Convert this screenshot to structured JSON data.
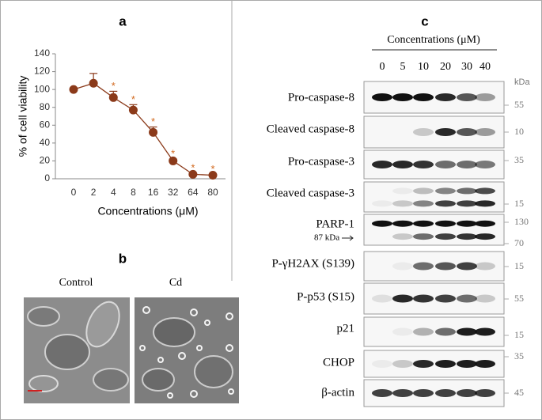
{
  "chart_data": {
    "type": "line",
    "title": "a",
    "xlabel": "Concentrations (μM)",
    "ylabel": "% of  cell viability",
    "categories": [
      "0",
      "2",
      "4",
      "8",
      "16",
      "32",
      "64",
      "80"
    ],
    "values": [
      100,
      107,
      91,
      77,
      52,
      20,
      5,
      4
    ],
    "errors": [
      0,
      11,
      7,
      6,
      6,
      2,
      1,
      1
    ],
    "color": "#8b3a1a",
    "ylim": [
      0,
      140
    ],
    "yticks": [
      0,
      20,
      40,
      60,
      80,
      100,
      120,
      140
    ],
    "annotations": [
      {
        "text": "*",
        "x": "4"
      },
      {
        "text": "*",
        "x": "8"
      },
      {
        "text": "*",
        "x": "16"
      },
      {
        "text": "*",
        "x": "32"
      },
      {
        "text": "*",
        "x": "64"
      },
      {
        "text": "*",
        "x": "80"
      }
    ]
  },
  "panel_b": {
    "title": "b",
    "images": [
      "Control",
      "Cd"
    ]
  },
  "panel_c": {
    "title": "c",
    "header": "Concentrations (μM)",
    "lanes": [
      "0",
      "5",
      "10",
      "20",
      "30",
      "40"
    ],
    "unit": "kDa",
    "rows": [
      {
        "label": "Pro-caspase-8",
        "markers": [
          "55"
        ]
      },
      {
        "label": "Cleaved caspase-8",
        "markers": [
          "10"
        ]
      },
      {
        "label": "Pro-caspase-3",
        "markers": [
          "35"
        ]
      },
      {
        "label": "Cleaved caspase-3",
        "markers": [
          "15"
        ]
      },
      {
        "label": "PARP-1",
        "sublabel": "87 kDa",
        "markers": [
          "130",
          "70"
        ]
      },
      {
        "label": "P-γH2AX (S139)",
        "markers": [
          "15"
        ]
      },
      {
        "label": "P-p53 (S15)",
        "markers": [
          "55"
        ]
      },
      {
        "label": "p21",
        "markers": [
          "15"
        ]
      },
      {
        "label": "CHOP",
        "markers": [
          "35"
        ]
      },
      {
        "label": "β-actin",
        "markers": [
          "45"
        ]
      }
    ]
  }
}
